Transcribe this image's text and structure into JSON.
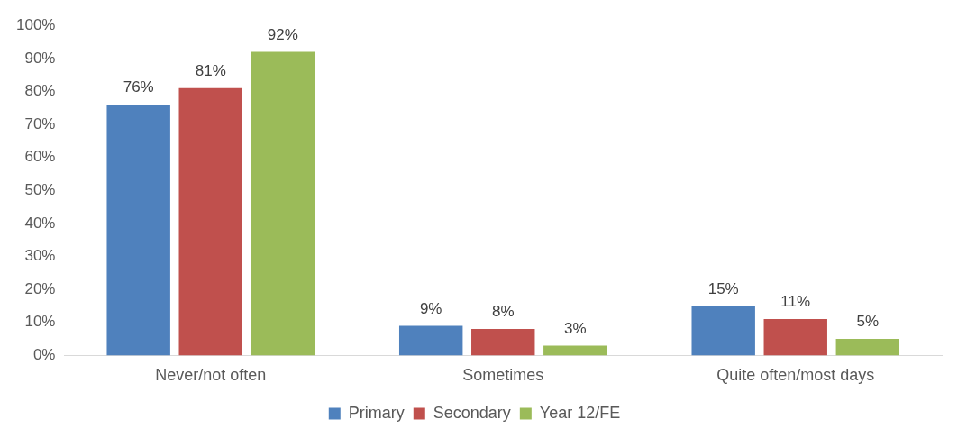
{
  "chart_data": {
    "type": "bar",
    "categories": [
      "Never/not often",
      "Sometimes",
      "Quite often/most days"
    ],
    "series": [
      {
        "name": "Primary",
        "color": "#4f81bd",
        "values": [
          76,
          9,
          15
        ],
        "value_labels": [
          "76%",
          "9%",
          "15%"
        ]
      },
      {
        "name": "Secondary",
        "color": "#c0504d",
        "values": [
          81,
          8,
          11
        ],
        "value_labels": [
          "81%",
          "8%",
          "11%"
        ]
      },
      {
        "name": "Year 12/FE",
        "color": "#9bbb59",
        "values": [
          92,
          3,
          5
        ],
        "value_labels": [
          "92%",
          "3%",
          "5%"
        ]
      }
    ],
    "ylim": [
      0,
      100
    ],
    "yticks": [
      {
        "value": 0,
        "label": "0%"
      },
      {
        "value": 10,
        "label": "10%"
      },
      {
        "value": 20,
        "label": "20%"
      },
      {
        "value": 30,
        "label": "30%"
      },
      {
        "value": 40,
        "label": "40%"
      },
      {
        "value": 50,
        "label": "50%"
      },
      {
        "value": 60,
        "label": "60%"
      },
      {
        "value": 70,
        "label": "70%"
      },
      {
        "value": 80,
        "label": "80%"
      },
      {
        "value": 90,
        "label": "90%"
      },
      {
        "value": 100,
        "label": "100%"
      }
    ],
    "grid": false,
    "legend": "bottom"
  }
}
